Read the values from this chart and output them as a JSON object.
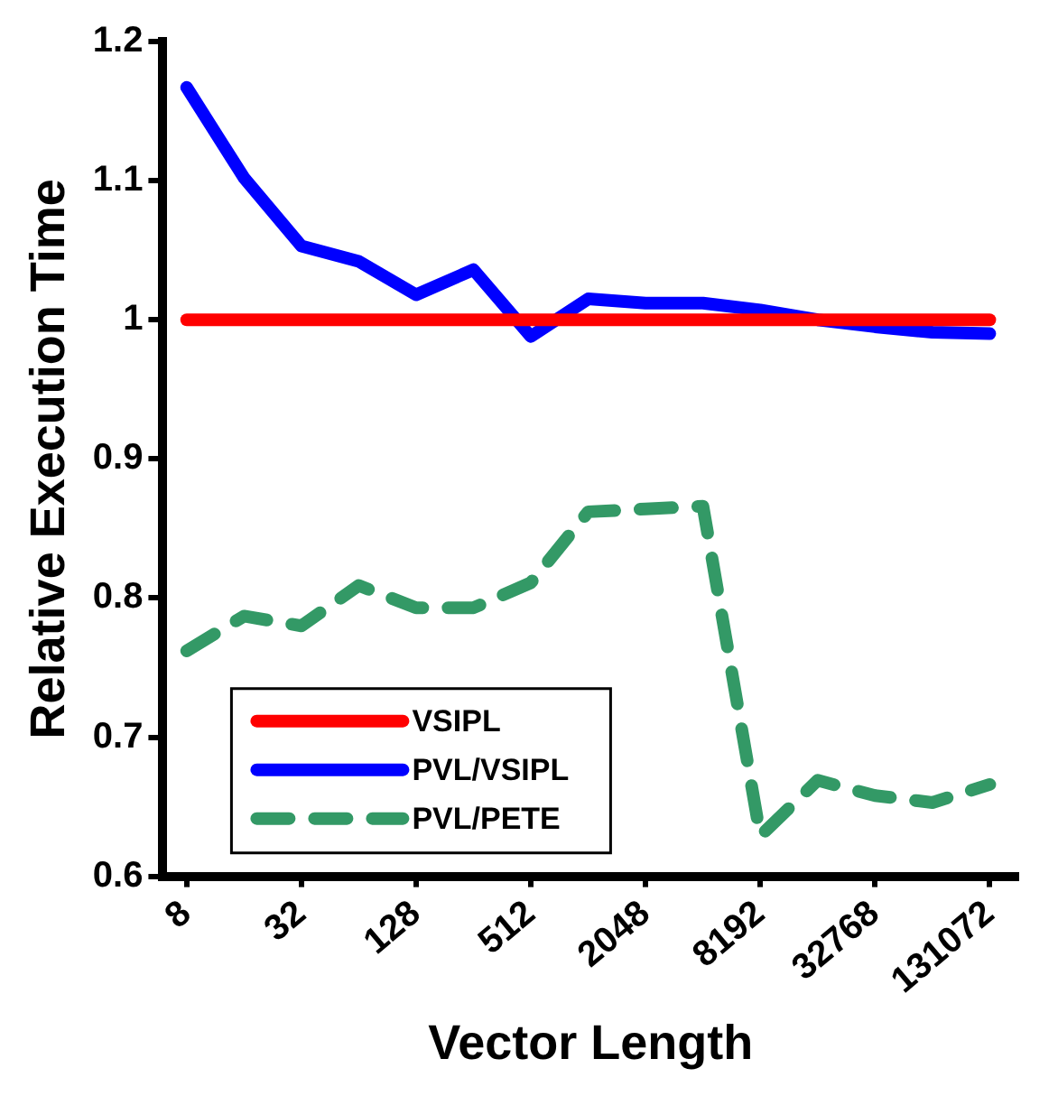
{
  "chart_data": {
    "type": "line",
    "xlabel": "Vector Length",
    "ylabel": "Relative Execution Time",
    "x": [
      8,
      16,
      32,
      64,
      128,
      256,
      512,
      1024,
      2048,
      4096,
      8192,
      16384,
      32768,
      65536,
      131072
    ],
    "series": [
      {
        "name": "VSIPL",
        "color": "#ff0000",
        "line_style": "solid",
        "values": [
          1,
          1,
          1,
          1,
          1,
          1,
          1,
          1,
          1,
          1,
          1,
          1,
          1,
          1,
          1
        ]
      },
      {
        "name": "PVL/VSIPL",
        "color": "#0000ff",
        "line_style": "solid",
        "values": [
          1.167,
          1.102,
          1.053,
          1.042,
          1.018,
          1.036,
          0.988,
          1.015,
          1.012,
          1.012,
          1.007,
          1.0,
          0.995,
          0.991,
          0.99
        ]
      },
      {
        "name": "PVL/PETE",
        "color": "#339966",
        "line_style": "dashed",
        "values": [
          0.762,
          0.787,
          0.78,
          0.809,
          0.793,
          0.793,
          0.811,
          0.862,
          0.864,
          0.866,
          0.629,
          0.669,
          0.658,
          0.653,
          0.666
        ]
      }
    ],
    "log": "x",
    "xlim": [
      6,
      185000
    ],
    "xticks": [
      8,
      32,
      128,
      512,
      2048,
      8192,
      32768,
      131072
    ],
    "ylim": [
      0.6,
      1.2
    ],
    "yticks": [
      0.6,
      0.7,
      0.8,
      0.9,
      {
        "value": 1,
        "label": "1"
      },
      1.1,
      1.2
    ],
    "grid": false,
    "legend": "bottom left",
    "marker": "none"
  }
}
